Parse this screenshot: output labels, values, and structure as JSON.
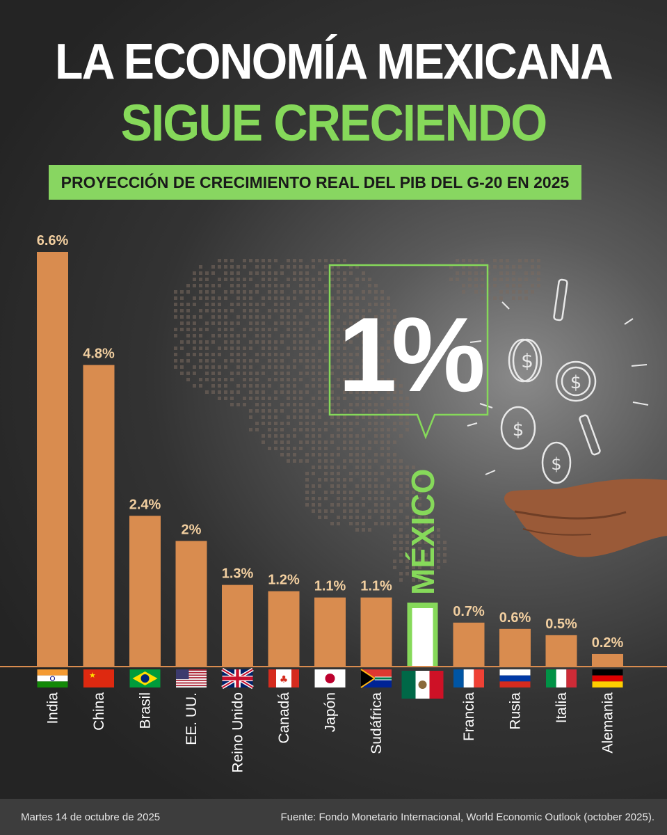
{
  "header": {
    "title_line1": "LA ECONOMÍA MEXICANA",
    "title_line2": "SIGUE CRECIENDO",
    "subtitle": "PROYECCIÓN DE CRECIMIENTO REAL DEL PIB DEL G-20 EN 2025"
  },
  "highlight": {
    "value_label": "1%",
    "country": "MÉXICO"
  },
  "colors": {
    "bar": "#d98c4f",
    "highlight": "#86d95a",
    "value_label": "#f2cfa0",
    "background": "#2e2e2e"
  },
  "chart_data": {
    "type": "bar",
    "title": "PROYECCIÓN DE CRECIMIENTO REAL DEL PIB DEL G-20 EN 2025",
    "categories": [
      "India",
      "China",
      "Brasil",
      "EE. UU.",
      "Reino Unido",
      "Canadá",
      "Japón",
      "Sudáfrica",
      "México",
      "Francia",
      "Rusia",
      "Italia",
      "Alemania"
    ],
    "values": [
      6.6,
      4.8,
      2.4,
      2.0,
      1.3,
      1.2,
      1.1,
      1.1,
      1.0,
      0.7,
      0.6,
      0.5,
      0.2
    ],
    "value_labels": [
      "6.6%",
      "4.8%",
      "2.4%",
      "2%",
      "1.3%",
      "1.2%",
      "1.1%",
      "1.1%",
      "",
      "0.7%",
      "0.6%",
      "0.5%",
      "0.2%"
    ],
    "flags": [
      "india-flag",
      "china-flag",
      "brazil-flag",
      "usa-flag",
      "uk-flag",
      "canada-flag",
      "japan-flag",
      "south-africa-flag",
      "mexico-flag",
      "france-flag",
      "russia-flag",
      "italy-flag",
      "germany-flag"
    ],
    "highlight_category": "México",
    "ylim": [
      0,
      6.6
    ],
    "grid": false
  },
  "footer": {
    "date": "Martes 14 de octubre de 2025",
    "source": "Fuente: Fondo Monetario Internacional, World Economic Outlook (october 2025)."
  }
}
